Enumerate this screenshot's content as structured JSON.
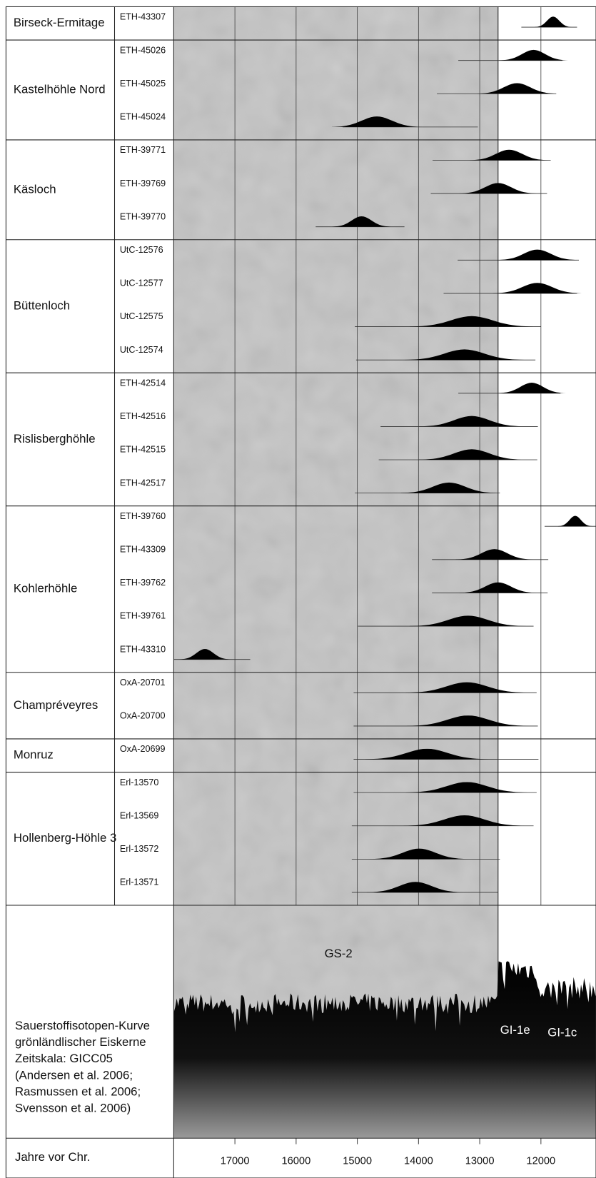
{
  "chart_data": {
    "type": "range-plot",
    "xlim": [
      18000,
      11100
    ],
    "xticks": [
      17000,
      16000,
      15000,
      14000,
      13000,
      12000
    ],
    "x_label": "Jahre vor Chr.",
    "gs2_boundary": 12700,
    "curve_labels": [
      "GS-2",
      "GI-1e",
      "GI-1c"
    ],
    "curve_caption": [
      "Sauerstoffisotopen-Kurve",
      "grönländlischer Eiskerne",
      "Zeitskala: GICC05",
      "(Andersen et al. 2006;",
      " Rasmussen et al. 2006;",
      "Svensson et al. 2006)"
    ],
    "groups": [
      {
        "site": "Birseck-Ermitage",
        "samples": [
          {
            "lab": "ETH-43307",
            "range": [
              12320,
              11410
            ],
            "peak": 11800
          }
        ]
      },
      {
        "site": "Kastelhöhle Nord",
        "samples": [
          {
            "lab": "ETH-45026",
            "range": [
              13350,
              11650
            ],
            "peak": 12120
          },
          {
            "lab": "ETH-45025",
            "range": [
              13700,
              11750
            ],
            "peak": 12390
          },
          {
            "lab": "ETH-45024",
            "range": [
              15240,
              13030
            ],
            "peak": 14680
          }
        ]
      },
      {
        "site": "Käsloch",
        "samples": [
          {
            "lab": "ETH-39771",
            "range": [
              13770,
              11840
            ],
            "peak": 12520
          },
          {
            "lab": "ETH-39769",
            "range": [
              13800,
              11900
            ],
            "peak": 12700
          },
          {
            "lab": "ETH-39770",
            "range": [
              15680,
              14230
            ],
            "peak": 14930
          }
        ]
      },
      {
        "site": "Büttenloch",
        "samples": [
          {
            "lab": "UtC-12576",
            "range": [
              13360,
              11380
            ],
            "peak": 12060
          },
          {
            "lab": "UtC-12577",
            "range": [
              13590,
              11410
            ],
            "peak": 12060
          },
          {
            "lab": "UtC-12575",
            "range": [
              15040,
              12000
            ],
            "peak": 13130
          },
          {
            "lab": "UtC-12574",
            "range": [
              15020,
              12090
            ],
            "peak": 13250
          }
        ]
      },
      {
        "site": "Rislisberghöhle",
        "samples": [
          {
            "lab": "ETH-42514",
            "range": [
              13350,
              11680
            ],
            "peak": 12150
          },
          {
            "lab": "ETH-42516",
            "range": [
              14620,
              12050
            ],
            "peak": 13130
          },
          {
            "lab": "ETH-42515",
            "range": [
              14650,
              12060
            ],
            "peak": 13130
          },
          {
            "lab": "ETH-42517",
            "range": [
              15040,
              12670
            ],
            "peak": 13500
          }
        ]
      },
      {
        "site": "Kohlerhöhle",
        "samples": [
          {
            "lab": "ETH-39760",
            "range": [
              11940,
              11100
            ],
            "peak": 11440
          },
          {
            "lab": "ETH-43309",
            "range": [
              13780,
              11880
            ],
            "peak": 12760
          },
          {
            "lab": "ETH-39762",
            "range": [
              13780,
              11890
            ],
            "peak": 12700
          },
          {
            "lab": "ETH-39761",
            "range": [
              14990,
              12120
            ],
            "peak": 13190
          },
          {
            "lab": "ETH-43310",
            "range": [
              18000,
              16750
            ],
            "peak": 17490
          }
        ]
      },
      {
        "site": "Champréveyres",
        "samples": [
          {
            "lab": "OxA-20701",
            "range": [
              15060,
              12070
            ],
            "peak": 13210
          },
          {
            "lab": "OxA-20700",
            "range": [
              15060,
              12050
            ],
            "peak": 13190
          }
        ]
      },
      {
        "site": "Monruz",
        "samples": [
          {
            "lab": "OxA-20699",
            "range": [
              15060,
              12040
            ],
            "peak": 13860
          }
        ]
      },
      {
        "site": "Hollenberg-Höhle 3",
        "samples": [
          {
            "lab": "Erl-13570",
            "range": [
              15060,
              12070
            ],
            "peak": 13210
          },
          {
            "lab": "Erl-13569",
            "range": [
              15090,
              12120
            ],
            "peak": 13250
          },
          {
            "lab": "Erl-13572",
            "range": [
              15090,
              12670
            ],
            "peak": 13990
          },
          {
            "lab": "Erl-13571",
            "range": [
              15090,
              12700
            ],
            "peak": 14050
          }
        ]
      }
    ]
  }
}
